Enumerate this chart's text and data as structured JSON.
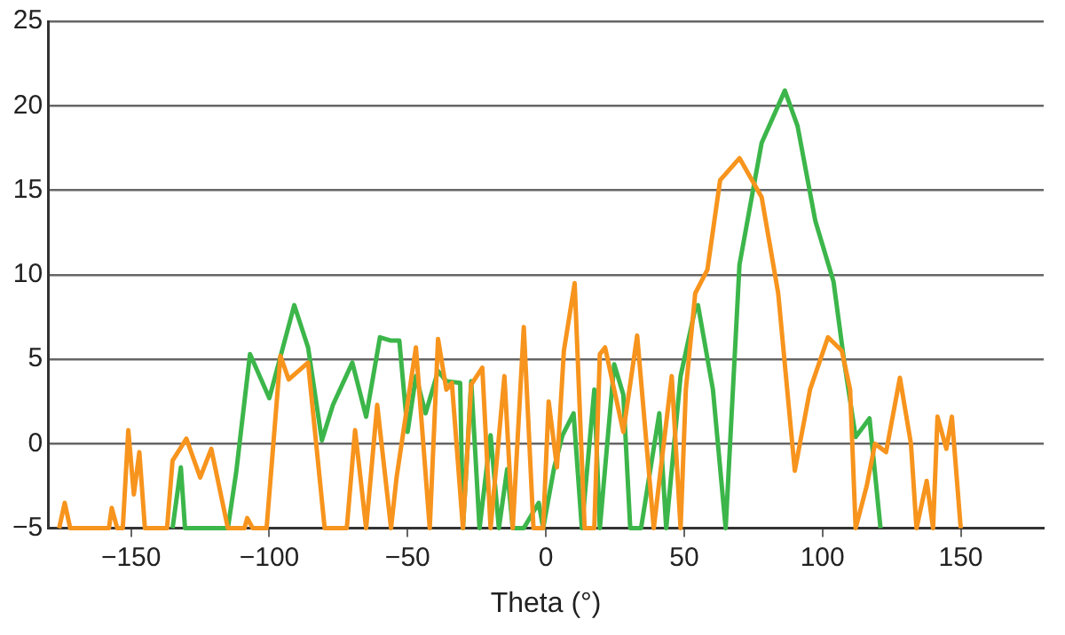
{
  "chart_data": {
    "type": "line",
    "xlabel": "Theta (°)",
    "xlim": [
      -180,
      180
    ],
    "xticks": [
      -150,
      -100,
      -50,
      0,
      50,
      100,
      150
    ],
    "ylim": [
      -5,
      25
    ],
    "yticks": [
      -5,
      0,
      5,
      10,
      15,
      20,
      25
    ],
    "grid": "y",
    "legend": false,
    "marker": "none",
    "line_style": "solid",
    "series": [
      {
        "color": "#f7941d",
        "x": [
          -176,
          -174,
          -172,
          -158,
          -157,
          -155,
          -153,
          -151,
          -149,
          -147,
          -145,
          -137,
          -135,
          -130,
          -125,
          -121,
          -115,
          -109,
          -108,
          -106,
          -101,
          -96,
          -93,
          -86,
          -80,
          -76,
          -72,
          -69,
          -65,
          -61,
          -56,
          -54,
          -47,
          -42,
          -39,
          -36,
          -34,
          -30,
          -27,
          -23,
          -20,
          -15,
          -12,
          -8,
          -4.5,
          -1,
          1,
          4,
          6.5,
          10.4,
          14,
          17.5,
          19.5,
          21.4,
          28,
          33,
          39,
          45.5,
          48.7,
          50.6,
          54,
          58.4,
          63,
          70,
          78,
          84,
          90,
          95.5,
          102,
          107,
          110,
          112,
          116,
          119,
          123,
          128,
          132,
          134,
          137.7,
          140,
          141.6,
          144.8,
          146.8,
          150
        ],
        "values": [
          -5,
          -3.5,
          -5,
          -5,
          -3.8,
          -5,
          -5,
          0.8,
          -3,
          -0.5,
          -5,
          -5,
          -1,
          0.3,
          -2,
          -0.3,
          -5,
          -5,
          -4.4,
          -5,
          -5,
          5.2,
          3.8,
          4.8,
          -5,
          -5,
          -5,
          0.8,
          -5,
          2.3,
          -5,
          -2,
          5.7,
          -5,
          6.2,
          3.2,
          3.6,
          -5,
          3.5,
          4.5,
          -5,
          4,
          -5,
          6.9,
          -5,
          -5,
          2.5,
          -1.4,
          5.5,
          9.5,
          -5,
          -5,
          5.3,
          5.7,
          0.7,
          6.4,
          -5,
          4,
          -5,
          3.2,
          8.9,
          10.3,
          15.6,
          16.9,
          14.6,
          8.9,
          -1.6,
          3.2,
          6.3,
          5.5,
          3.2,
          -5,
          -2.5,
          0,
          -0.5,
          3.9,
          0,
          -5,
          -2.2,
          -5,
          1.6,
          -0.3,
          1.6,
          -5
        ]
      },
      {
        "color": "#3cb64a",
        "x": [
          -135,
          -132,
          -130.5,
          -115,
          -112,
          -107,
          -100,
          -91,
          -86,
          -81,
          -77,
          -70,
          -65,
          -60,
          -56,
          -53,
          -50,
          -47,
          -43.5,
          -39,
          -36,
          -31,
          -30,
          -27,
          -24,
          -20,
          -17,
          -14,
          -12,
          -8,
          -2.6,
          -1,
          3,
          6,
          10,
          13,
          17.5,
          19.5,
          24.7,
          28,
          30.5,
          34.4,
          41,
          43.5,
          48.7,
          54,
          55,
          60.4,
          65,
          70,
          78,
          86.4,
          91,
          97.4,
          104,
          108,
          112,
          117,
          121
        ],
        "values": [
          -5,
          -1.4,
          -5,
          -5,
          -1.7,
          5.3,
          2.7,
          8.2,
          5.7,
          0.2,
          2.3,
          4.8,
          1.6,
          6.3,
          6.1,
          6.1,
          0.7,
          4,
          1.8,
          4.3,
          3.7,
          3.6,
          -5,
          3.7,
          -5,
          0.5,
          -5,
          -1.5,
          -5,
          -5,
          -3.5,
          -5,
          -1.4,
          0.5,
          1.8,
          -5,
          3.2,
          -5,
          4.7,
          2.9,
          -5,
          -5,
          1.8,
          -5,
          4,
          8,
          8.2,
          3.2,
          -5,
          10.6,
          17.8,
          20.9,
          18.8,
          13.2,
          9.6,
          4.7,
          0.4,
          1.5,
          -5
        ]
      }
    ]
  }
}
